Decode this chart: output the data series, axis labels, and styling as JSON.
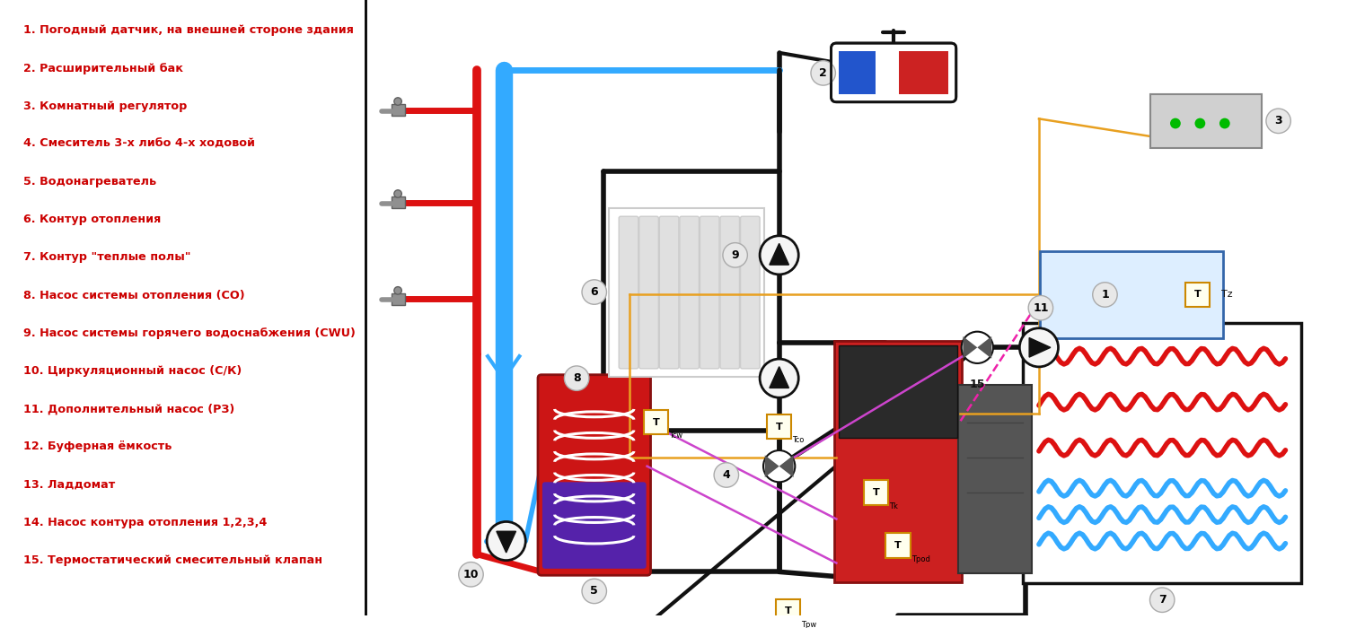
{
  "bg_color": "#ffffff",
  "text_color": "#cc0000",
  "legend_items": [
    "1. Погодный датчик, на внешней стороне здания",
    "2. Расширительный бак",
    "3. Комнатный регулятор",
    "4. Смеситель 3-х либо 4-х ходовой",
    "5. Водонагреватель",
    "6. Контур отопления",
    "7. Контур \"теплые полы\"",
    "8. Насос системы отопления (СО)",
    "9. Насос системы горячего водоснабжения (CWU)",
    "10. Циркуляционный насос (С/К)",
    "11. Дополнительный насос (РЗ)",
    "12. Буферная ёмкость",
    "13. Ладдомат",
    "14. Насос контура отопления 1,2,3,4",
    "15. Термостатический смесительный клапан"
  ],
  "hot_color": "#dd1111",
  "cold_color": "#33aaff",
  "black": "#111111",
  "gray": "#888888",
  "orange": "#e8a020",
  "purple": "#cc44cc",
  "pink": "#ee22aa"
}
